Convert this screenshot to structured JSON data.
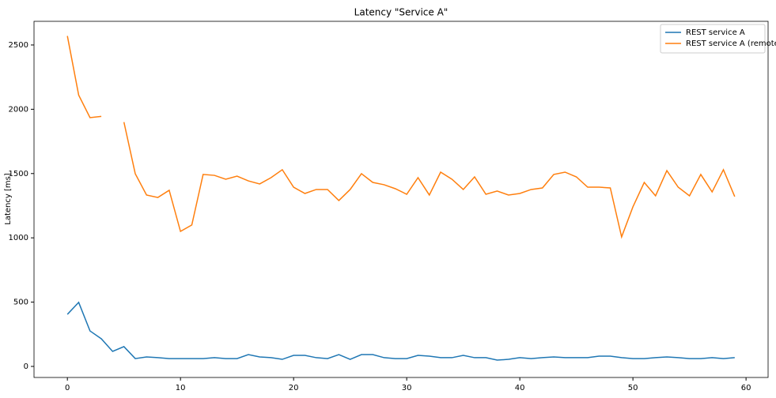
{
  "chart_data": {
    "type": "line",
    "title": "Latency \"Service A\"",
    "ylabel": "Latency [ms]",
    "x": [
      0,
      1,
      2,
      3,
      4,
      5,
      6,
      7,
      8,
      9,
      10,
      11,
      12,
      13,
      14,
      15,
      16,
      17,
      18,
      19,
      20,
      21,
      22,
      23,
      24,
      25,
      26,
      27,
      28,
      29,
      30,
      31,
      32,
      33,
      34,
      35,
      36,
      37,
      38,
      39,
      40,
      41,
      42,
      43,
      44,
      45,
      46,
      47,
      48,
      49,
      50,
      51,
      52,
      53,
      54,
      55,
      56,
      57,
      58,
      59
    ],
    "series": [
      {
        "name": "REST service A",
        "color": "#1f77b4",
        "values": [
          405,
          498,
          276,
          215,
          117,
          154,
          61,
          74,
          68,
          61,
          61,
          61,
          61,
          68,
          61,
          61,
          92,
          74,
          68,
          55,
          86,
          86,
          68,
          61,
          92,
          55,
          92,
          92,
          68,
          61,
          61,
          86,
          80,
          68,
          68,
          86,
          68,
          68,
          49,
          55,
          68,
          61,
          68,
          74,
          68,
          68,
          68,
          80,
          80,
          68,
          61,
          61,
          68,
          74,
          68,
          61,
          61,
          68,
          61,
          68
        ]
      },
      {
        "name": "REST service A (remote)",
        "color": "#ff7f0e",
        "values": [
          2570,
          2110,
          1935,
          1945,
          null,
          1900,
          1499,
          1333,
          1314,
          1370,
          1050,
          1100,
          1493,
          1486,
          1456,
          1480,
          1443,
          1419,
          1468,
          1530,
          1394,
          1345,
          1376,
          1376,
          1290,
          1376,
          1499,
          1431,
          1413,
          1382,
          1339,
          1468,
          1333,
          1511,
          1456,
          1376,
          1474,
          1339,
          1364,
          1333,
          1345,
          1376,
          1388,
          1493,
          1511,
          1474,
          1394,
          1394,
          1388,
          1007,
          1241,
          1431,
          1327,
          1523,
          1394,
          1327,
          1493,
          1357,
          1530,
          1321
        ]
      }
    ],
    "xlim": [
      -2.95,
      61.95
    ],
    "xticks": [
      0,
      10,
      20,
      30,
      40,
      50,
      60
    ],
    "ylim": [
      -86,
      2684
    ],
    "yticks": [
      0,
      500,
      1000,
      1500,
      2000,
      2500
    ],
    "legend": "upper right"
  }
}
